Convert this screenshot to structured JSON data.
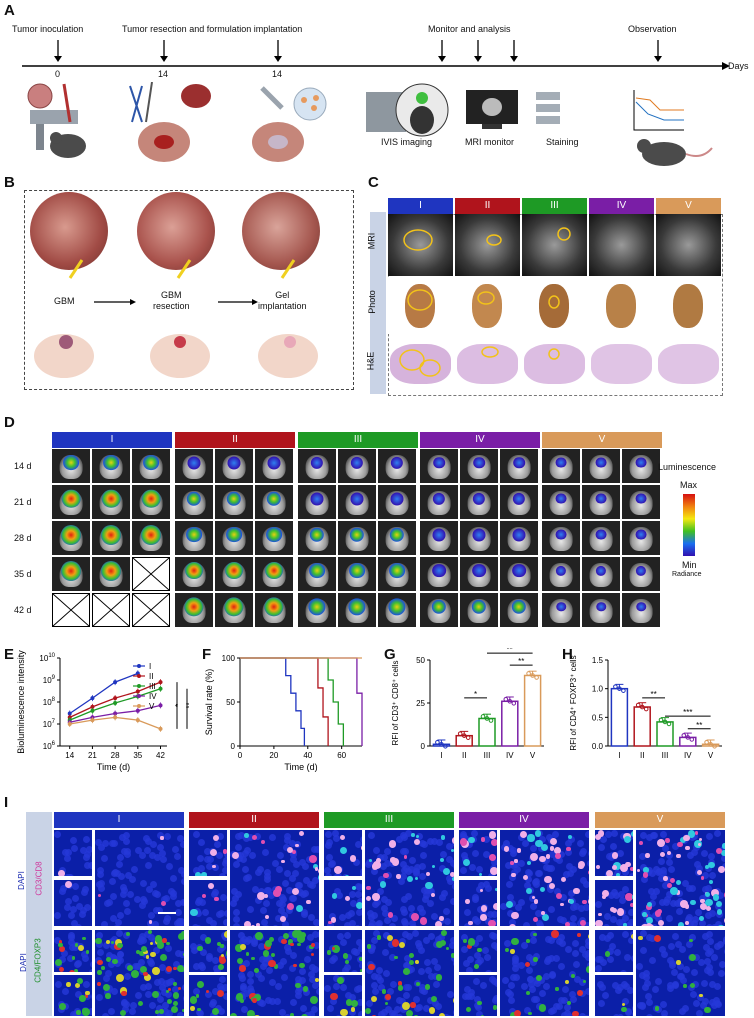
{
  "panels": {
    "A": "A",
    "B": "B",
    "C": "C",
    "D": "D",
    "E": "E",
    "F": "F",
    "G": "G",
    "H": "H",
    "I": "I"
  },
  "colors": {
    "I": "#1f35c0",
    "II": "#b0141c",
    "III": "#1e9a25",
    "IV": "#7a1ea6",
    "V": "#d99a5a"
  },
  "timeline": {
    "events": {
      "inoculation": "Tumor inoculation",
      "resection": "Tumor resection and formulation implantation",
      "monitor": "Monitor and analysis",
      "observation": "Observation"
    },
    "days": [
      "0",
      "14",
      "14"
    ],
    "axis_label": "Days",
    "steps": {
      "ivis": "IVIS imaging",
      "mri": "MRI monitor",
      "staining": "Staining"
    }
  },
  "panel_b": {
    "gbm": "GBM",
    "resection": "GBM\nresection",
    "gel": "Gel\nimplantation"
  },
  "panel_c": {
    "groups": [
      "I",
      "II",
      "III",
      "IV",
      "V"
    ],
    "rows": [
      "MRI",
      "Photo",
      "H&E"
    ]
  },
  "panel_d": {
    "groups": [
      "I",
      "II",
      "III",
      "IV",
      "V"
    ],
    "days": [
      "14 d",
      "21 d",
      "28 d",
      "35 d",
      "42 d"
    ],
    "legend": {
      "title": "Luminescence",
      "max": "Max",
      "min": "Min",
      "unit": "Radiance"
    }
  },
  "panel_i": {
    "groups": [
      "I",
      "II",
      "III",
      "IV",
      "V"
    ],
    "row1_dapi": "DAPI",
    "row1_markers": "CD3/CD8",
    "row2_dapi": "DAPI",
    "row2_markers": "CD4/FOXP3"
  },
  "chart_data": [
    {
      "panel": "E",
      "type": "line",
      "xlabel": "Time (d)",
      "ylabel": "Bioluminescence intensity",
      "x": [
        14,
        21,
        28,
        35,
        42
      ],
      "y_scale": "log",
      "ylim": [
        1000000,
        10000000000
      ],
      "yticks": [
        "10^6",
        "10^7",
        "10^8",
        "10^9",
        "10^10"
      ],
      "series": [
        {
          "name": "I",
          "values": [
            30000000,
            150000000,
            800000000,
            2000000000,
            null
          ]
        },
        {
          "name": "II",
          "values": [
            20000000,
            60000000,
            150000000,
            300000000,
            800000000
          ]
        },
        {
          "name": "III",
          "values": [
            15000000,
            40000000,
            90000000,
            180000000,
            400000000
          ]
        },
        {
          "name": "IV",
          "values": [
            12000000,
            20000000,
            30000000,
            40000000,
            70000000
          ]
        },
        {
          "name": "V",
          "values": [
            10000000,
            15000000,
            20000000,
            15000000,
            6000000
          ]
        }
      ],
      "significance": [
        "*",
        "**"
      ]
    },
    {
      "panel": "F",
      "type": "line",
      "xlabel": "Time (d)",
      "ylabel": "Survival rate (%)",
      "xticks": [
        0,
        20,
        40,
        60
      ],
      "yticks": [
        0,
        50,
        100
      ],
      "xlim": [
        0,
        72
      ],
      "ylim": [
        0,
        100
      ],
      "series": [
        {
          "name": "I",
          "x": [
            0,
            27,
            30,
            33,
            36,
            38
          ],
          "values": [
            100,
            80,
            60,
            40,
            20,
            0
          ]
        },
        {
          "name": "II",
          "x": [
            0,
            46,
            49,
            52
          ],
          "values": [
            100,
            66,
            33,
            0
          ]
        },
        {
          "name": "III",
          "x": [
            0,
            52,
            55,
            58,
            61
          ],
          "values": [
            100,
            75,
            50,
            25,
            0
          ]
        },
        {
          "name": "IV",
          "x": [
            0,
            69,
            72
          ],
          "values": [
            100,
            60,
            0
          ]
        },
        {
          "name": "V",
          "x": [
            0,
            72
          ],
          "values": [
            100,
            100
          ]
        }
      ]
    },
    {
      "panel": "G",
      "type": "bar",
      "categories": [
        "I",
        "II",
        "III",
        "IV",
        "V"
      ],
      "values": [
        1,
        6,
        16,
        26,
        41
      ],
      "ylim": [
        0,
        50
      ],
      "yticks": [
        0,
        25,
        50
      ],
      "ylabel": "RFI of CD3⁺ CD8⁺ cells",
      "significance": [
        "*",
        "**",
        "**"
      ]
    },
    {
      "panel": "H",
      "type": "bar",
      "categories": [
        "I",
        "II",
        "III",
        "IV",
        "V"
      ],
      "values": [
        1.0,
        0.68,
        0.42,
        0.15,
        0.03
      ],
      "ylim": [
        0,
        1.5
      ],
      "yticks": [
        "0.0",
        "0.5",
        "1.0",
        "1.5"
      ],
      "ylabel": "RFI of CD4⁺ FOXP3⁺ cells",
      "significance": [
        "**",
        "***",
        "**"
      ]
    }
  ]
}
